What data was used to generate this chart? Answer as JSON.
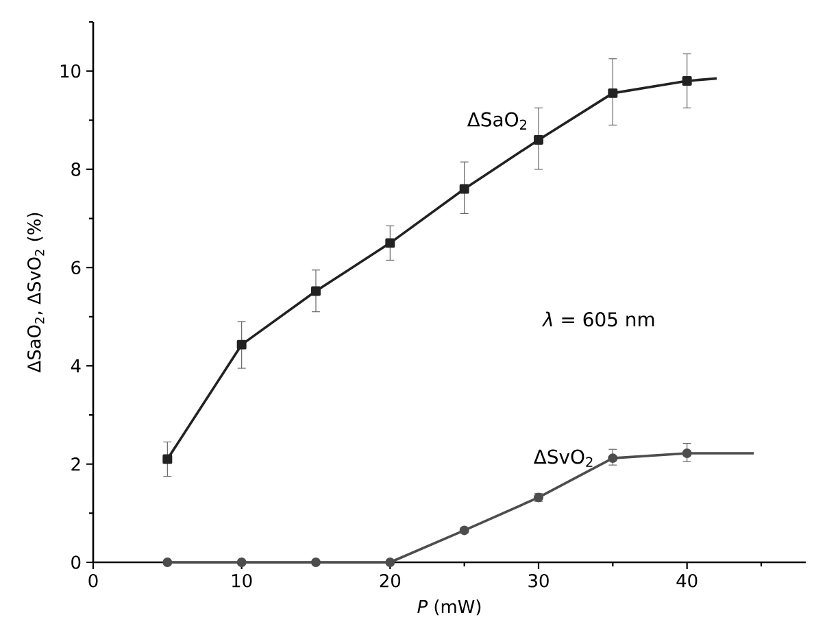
{
  "chart_data": {
    "type": "line",
    "xlabel": "*P* (mW)",
    "ylabel": "ΔSaO$_{2}$, ΔSvO$_{2}$ (%)",
    "xlim": [
      0,
      48
    ],
    "ylim": [
      0,
      11
    ],
    "xticks": [
      0,
      10,
      20,
      30,
      40,
      {
        "value": 5,
        "label": null
      },
      {
        "value": 15,
        "label": null
      },
      {
        "value": 25,
        "label": null
      },
      {
        "value": 35,
        "label": null
      },
      {
        "value": 45,
        "label": null
      }
    ],
    "yticks": [
      0,
      2,
      4,
      6,
      8,
      10,
      {
        "value": 1,
        "label": null
      },
      {
        "value": 3,
        "label": null
      },
      {
        "value": 5,
        "label": null
      },
      {
        "value": 7,
        "label": null
      },
      {
        "value": 9,
        "label": null
      },
      {
        "value": 11,
        "label": null
      }
    ],
    "annotations": [
      "*λ* = 605 nm"
    ],
    "series": [
      {
        "name": "ΔSaO$_{2}$",
        "color": "#222222",
        "marker": "square",
        "x": [
          5,
          10,
          15,
          20,
          25,
          30,
          35,
          40
        ],
        "values": [
          2.1,
          4.43,
          5.52,
          6.5,
          7.6,
          8.6,
          9.55,
          9.8
        ],
        "errors": [
          [
            1.75,
            2.45
          ],
          [
            3.95,
            4.9
          ],
          [
            5.1,
            5.95
          ],
          [
            6.15,
            6.85
          ],
          [
            7.1,
            8.15
          ],
          [
            8.0,
            9.25
          ],
          [
            8.9,
            10.25
          ],
          [
            9.25,
            10.35
          ]
        ]
      },
      {
        "name": "ΔSvO$_{2}$",
        "color": "#4d4d4d",
        "marker": "circle",
        "x": [
          5,
          10,
          15,
          20,
          25,
          30,
          35,
          40
        ],
        "values": [
          0,
          0,
          0,
          0,
          0.65,
          1.32,
          2.12,
          2.22
        ],
        "errors": [
          null,
          null,
          null,
          null,
          0.05,
          0.08,
          [
            1.98,
            2.3
          ],
          [
            2.05,
            2.42
          ]
        ]
      },
      {
        "type": "line",
        "color": "#222222",
        "marker": "none",
        "x": [
          40,
          42
        ],
        "values": [
          9.8,
          9.85
        ]
      },
      {
        "type": "line",
        "color": "#4d4d4d",
        "marker": "none",
        "x": [
          40,
          44.5
        ],
        "values": [
          2.22,
          2.22
        ]
      }
    ]
  }
}
